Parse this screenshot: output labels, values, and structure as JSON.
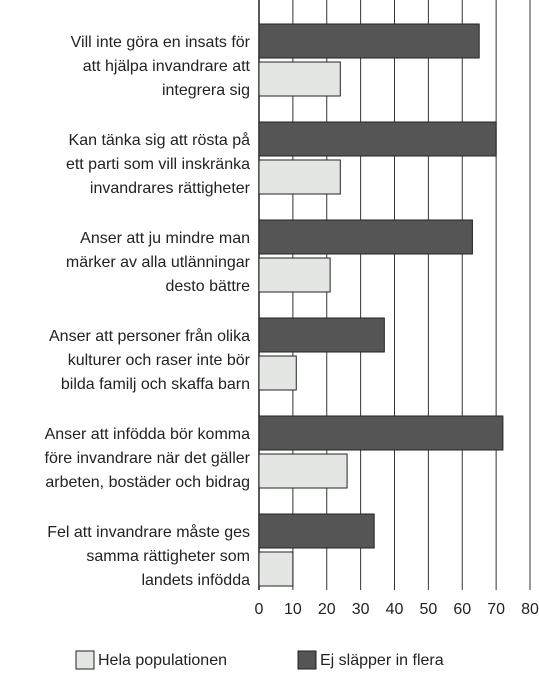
{
  "chart_data": {
    "type": "barh",
    "categories": [
      [
        "Vill inte göra en insats för",
        "att hjälpa invandrare att",
        "integrera sig"
      ],
      [
        "Kan tänka sig att rösta på",
        "ett parti som vill inskränka",
        "invandrares rättigheter"
      ],
      [
        "Anser att ju mindre man",
        "märker av alla utlänningar",
        "desto bättre"
      ],
      [
        "Anser att personer från olika",
        "kulturer och raser inte bör",
        "bilda familj och skaffa barn"
      ],
      [
        "Anser att infödda bör komma",
        "före invandrare när det gäller",
        "arbeten, bostäder och bidrag"
      ],
      [
        "Fel att invandrare måste ges",
        "samma rättigheter som",
        "landets infödda"
      ]
    ],
    "series": [
      {
        "name": "Hela populationen",
        "color": "#e4e6e4",
        "values": [
          24,
          24,
          21,
          11,
          26,
          10
        ]
      },
      {
        "name": "Ej släpper in flera",
        "color": "#555555",
        "values": [
          65,
          70,
          63,
          37,
          72,
          34
        ]
      }
    ],
    "xlim": [
      0,
      80
    ],
    "xticks": [
      0,
      10,
      20,
      30,
      40,
      50,
      60,
      70,
      80
    ],
    "grid": true
  }
}
